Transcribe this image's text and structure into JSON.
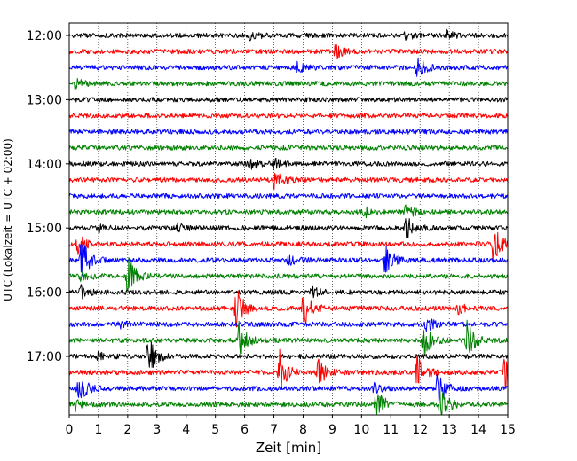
{
  "chart_data": {
    "type": "line",
    "title": "",
    "xlabel": "Zeit  [min]",
    "ylabel": "UTC (Lokalzeit = UTC + 02:00)",
    "xlim": [
      0,
      15
    ],
    "x_ticks": [
      "0",
      "1",
      "2",
      "3",
      "4",
      "5",
      "6",
      "7",
      "8",
      "9",
      "10",
      "11",
      "12",
      "13",
      "14",
      "15"
    ],
    "y_ticks": [
      "12:00",
      "13:00",
      "14:00",
      "15:00",
      "16:00",
      "17:00"
    ],
    "grid_x": "dotted",
    "trace_interval_minutes": 15,
    "color_cycle": [
      "#000000",
      "#ff0000",
      "#0000ff",
      "#008000"
    ],
    "traces": [
      {
        "start": "12:00",
        "events": [
          [
            6.2,
            0.6
          ],
          [
            11.5,
            0.5
          ],
          [
            12.9,
            0.5
          ]
        ]
      },
      {
        "start": "12:15",
        "events": [
          [
            9.1,
            0.8
          ]
        ]
      },
      {
        "start": "12:30",
        "events": [
          [
            7.8,
            0.6
          ],
          [
            11.9,
            1.4
          ]
        ]
      },
      {
        "start": "12:45",
        "events": [
          [
            0.2,
            0.6
          ]
        ]
      },
      {
        "start": "13:00",
        "events": []
      },
      {
        "start": "13:15",
        "events": []
      },
      {
        "start": "13:30",
        "events": []
      },
      {
        "start": "13:45",
        "events": []
      },
      {
        "start": "14:00",
        "events": [
          [
            6.2,
            0.6
          ],
          [
            7.0,
            0.6
          ]
        ]
      },
      {
        "start": "14:15",
        "events": [
          [
            7.0,
            1.3
          ]
        ]
      },
      {
        "start": "14:30",
        "events": []
      },
      {
        "start": "14:45",
        "events": [
          [
            10.1,
            0.6
          ],
          [
            11.5,
            1.0
          ]
        ]
      },
      {
        "start": "15:00",
        "events": [
          [
            11.5,
            2.0
          ],
          [
            1.0,
            0.5
          ],
          [
            3.7,
            0.5
          ]
        ]
      },
      {
        "start": "15:15",
        "events": [
          [
            14.5,
            2.6
          ],
          [
            0.3,
            1.2
          ]
        ]
      },
      {
        "start": "15:30",
        "events": [
          [
            0.4,
            3.0
          ],
          [
            10.8,
            2.6
          ],
          [
            7.5,
            0.6
          ]
        ]
      },
      {
        "start": "15:45",
        "events": [
          [
            2.0,
            2.6
          ],
          [
            0.4,
            0.8
          ]
        ]
      },
      {
        "start": "16:00",
        "events": [
          [
            0.4,
            0.8
          ],
          [
            8.3,
            0.6
          ]
        ]
      },
      {
        "start": "16:15",
        "events": [
          [
            5.7,
            2.8
          ],
          [
            8.0,
            2.6
          ],
          [
            13.3,
            0.6
          ]
        ]
      },
      {
        "start": "16:30",
        "events": [
          [
            1.7,
            0.6
          ],
          [
            12.2,
            1.0
          ]
        ]
      },
      {
        "start": "16:45",
        "events": [
          [
            5.8,
            2.4
          ],
          [
            12.1,
            2.6
          ],
          [
            13.6,
            2.4
          ]
        ]
      },
      {
        "start": "17:00",
        "events": [
          [
            2.7,
            2.8
          ],
          [
            1.0,
            0.5
          ]
        ]
      },
      {
        "start": "17:15",
        "events": [
          [
            7.2,
            2.6
          ],
          [
            8.5,
            2.0
          ],
          [
            11.9,
            2.4
          ],
          [
            14.9,
            2.6
          ]
        ]
      },
      {
        "start": "17:30",
        "events": [
          [
            0.3,
            2.2
          ],
          [
            12.6,
            2.2
          ],
          [
            10.4,
            0.6
          ]
        ]
      },
      {
        "start": "17:45",
        "events": [
          [
            10.5,
            2.2
          ],
          [
            12.7,
            2.4
          ],
          [
            0.2,
            0.8
          ]
        ]
      }
    ]
  }
}
